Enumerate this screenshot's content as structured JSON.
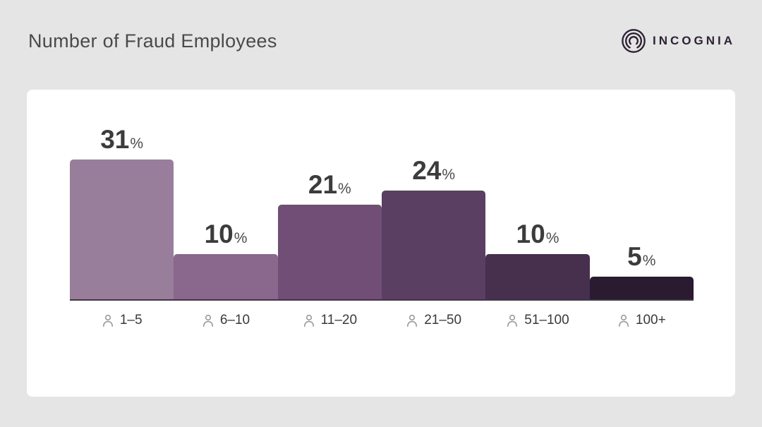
{
  "header": {
    "title": "Number of Fraud Employees",
    "brand": {
      "name": "INCOGNIA",
      "logo_icon": "incognia-rings-icon",
      "color": "#2D2135"
    }
  },
  "chart_data": {
    "type": "bar",
    "title": "Number of Fraud Employees",
    "categories": [
      "1–5",
      "6–10",
      "11–20",
      "21–50",
      "51–100",
      "100+"
    ],
    "values": [
      31,
      10,
      21,
      24,
      10,
      5
    ],
    "unit": "%",
    "bar_colors": [
      "#987E9B",
      "#8A678C",
      "#714E75",
      "#5A3F62",
      "#46304E",
      "#2A1B30"
    ],
    "category_icon": "person-icon",
    "value_label_position": "above-bars",
    "ylim": [
      0,
      35
    ],
    "grid": false,
    "legend": "none",
    "baseline_color": "#3C3C3C"
  },
  "colors": {
    "background": "#E4E5E4",
    "card": "#FFFFFF",
    "title_text": "#4A4A4A",
    "value_text": "#3C3C3C",
    "category_text": "#3A3A3A",
    "icon_gray": "#9B9B9B",
    "brand": "#2D2135",
    "baseline": "#3C3C3C"
  }
}
